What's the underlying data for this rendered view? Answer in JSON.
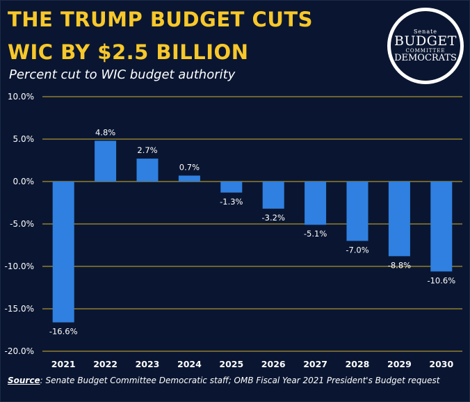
{
  "header": {
    "title_line1": "THE TRUMP BUDGET CUTS",
    "title_line2": "WIC BY $2.5 BILLION",
    "subtitle": "Percent cut to WIC budget authority"
  },
  "logo": {
    "line1": "Senate",
    "line2": "BUDGET",
    "line3": "COMMITTEE",
    "line4": "DEMOCRATS"
  },
  "source": {
    "label": "Source",
    "text": ": Senate Budget Committee Democratic staff; OMB Fiscal Year 2021 President's Budget request"
  },
  "colors": {
    "background": "#0a1631",
    "title": "#f8c82a",
    "bar": "#2f80e0",
    "grid": "#d4b12a",
    "text": "#ffffff"
  },
  "chart_data": {
    "type": "bar",
    "categories": [
      "2021",
      "2022",
      "2023",
      "2024",
      "2025",
      "2026",
      "2027",
      "2028",
      "2029",
      "2030"
    ],
    "values": [
      -16.6,
      4.8,
      2.7,
      0.7,
      -1.3,
      -3.2,
      -5.1,
      -7.0,
      -8.8,
      -10.6
    ],
    "data_labels": [
      "-16.6%",
      "4.8%",
      "2.7%",
      "0.7%",
      "-1.3%",
      "-3.2%",
      "-5.1%",
      "-7.0%",
      "-8.8%",
      "-10.6%"
    ],
    "title": "Percent cut to WIC budget authority",
    "xlabel": "",
    "ylabel": "",
    "ylim": [
      -20,
      10
    ],
    "yticks": [
      10,
      5,
      0,
      -5,
      -10,
      -15,
      -20
    ],
    "ytick_labels": [
      "10.0%",
      "5.0%",
      "0.0%",
      "-5.0%",
      "-10.0%",
      "-15.0%",
      "-20.0%"
    ],
    "grid": true,
    "legend": "none"
  }
}
